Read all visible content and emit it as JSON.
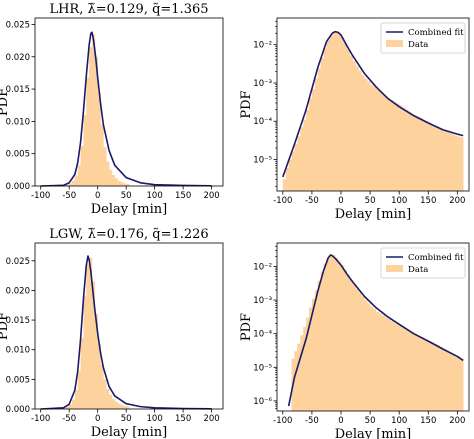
{
  "chart_data": [
    {
      "id": "lhr-linear",
      "type": "bar",
      "title": "LHR, λ̃=0.129, q̃=1.365",
      "xlabel": "Delay [min]",
      "ylabel": "PDF",
      "xlim": [
        -110,
        220
      ],
      "ylim": [
        0,
        0.026
      ],
      "yscale": "linear",
      "xticks": [
        -100,
        -50,
        0,
        50,
        100,
        150,
        200
      ],
      "yticks": [
        0,
        0.005,
        0.01,
        0.015,
        0.02,
        0.025
      ],
      "ytick_labels": [
        "0.000",
        "0.005",
        "0.010",
        "0.015",
        "0.020",
        "0.025"
      ],
      "hist": {
        "name": "Data",
        "color": "#fdd29c",
        "bin_width": 5,
        "bins": [
          -60,
          -55,
          -50,
          -45,
          -40,
          -35,
          -30,
          -25,
          -20,
          -15,
          -10,
          -5,
          0,
          5,
          10,
          15,
          20,
          25,
          30,
          35,
          40,
          45,
          50
        ],
        "values": [
          0.0001,
          0.0002,
          0.0004,
          0.0008,
          0.0016,
          0.0032,
          0.0062,
          0.011,
          0.0168,
          0.0215,
          0.0235,
          0.02,
          0.0145,
          0.0095,
          0.006,
          0.0038,
          0.0025,
          0.0017,
          0.0012,
          0.0008,
          0.0006,
          0.0004,
          0.0003
        ]
      },
      "fit": {
        "name": "Combined fit",
        "color": "#1a1a6e",
        "x": [
          -100,
          -60,
          -50,
          -40,
          -35,
          -30,
          -25,
          -20,
          -15,
          -12,
          -10,
          -7,
          -3,
          0,
          5,
          10,
          20,
          30,
          50,
          75,
          100,
          150,
          200
        ],
        "y": [
          0,
          0.0001,
          0.0005,
          0.0018,
          0.0036,
          0.0068,
          0.0115,
          0.017,
          0.0218,
          0.0236,
          0.0238,
          0.0225,
          0.0195,
          0.0168,
          0.0128,
          0.0095,
          0.0055,
          0.0032,
          0.0013,
          0.0005,
          0.0002,
          8e-05,
          4e-05
        ]
      }
    },
    {
      "id": "lhr-log",
      "type": "bar",
      "title": "",
      "xlabel": "Delay [min]",
      "ylabel": "PDF",
      "xlim": [
        -110,
        220
      ],
      "ylim": [
        1.5e-06,
        0.05
      ],
      "yscale": "log",
      "xticks": [
        -100,
        -50,
        0,
        50,
        100,
        150,
        200
      ],
      "yticks": [
        1e-05,
        0.0001,
        0.001,
        0.01
      ],
      "ytick_labels": [
        "10⁻⁵",
        "10⁻⁴",
        "10⁻³",
        "10⁻²"
      ],
      "legend": {
        "position": "upper right",
        "entries": [
          "Combined fit",
          "Data"
        ]
      },
      "hist": {
        "name": "Data",
        "color": "#fdd29c",
        "bin_width": 5,
        "bins": [
          -100,
          -95,
          -90,
          -85,
          -80,
          -75,
          -70,
          -65,
          -60,
          -55,
          -50,
          -45,
          -40,
          -35,
          -30,
          -25,
          -20,
          -15,
          -10,
          -5,
          0,
          5,
          10,
          15,
          20,
          25,
          30,
          35,
          40,
          45,
          50,
          55,
          60,
          65,
          70,
          75,
          80,
          85,
          90,
          95,
          100,
          105,
          110,
          115,
          120,
          125,
          130,
          135,
          140,
          145,
          150,
          155,
          160,
          165,
          170,
          175,
          180,
          185,
          190,
          195,
          200,
          205
        ],
        "values": [
          3e-06,
          6e-06,
          1e-05,
          1.6e-05,
          2.5e-05,
          4e-05,
          7e-05,
          0.00011,
          0.0002,
          0.0004,
          0.0007,
          0.0013,
          0.0024,
          0.0045,
          0.008,
          0.013,
          0.018,
          0.021,
          0.022,
          0.02,
          0.016,
          0.011,
          0.0075,
          0.0052,
          0.0037,
          0.0028,
          0.0021,
          0.0016,
          0.0013,
          0.0011,
          0.0009,
          0.0008,
          0.0007,
          0.0006,
          0.0005,
          0.00045,
          0.0004,
          0.00036,
          0.00032,
          0.00029,
          0.00026,
          0.00023,
          0.0002,
          0.00018,
          0.00016,
          0.00014,
          0.00013,
          0.00012,
          0.00011,
          0.0001,
          9e-05,
          8e-05,
          7.5e-05,
          7e-05,
          6.5e-05,
          6e-05,
          5.5e-05,
          5e-05,
          4.6e-05,
          4.2e-05,
          4e-05,
          3.8e-05
        ]
      },
      "fit": {
        "name": "Combined fit",
        "color": "#1a1a6e",
        "x": [
          -100,
          -80,
          -60,
          -40,
          -25,
          -15,
          -10,
          -5,
          0,
          10,
          20,
          40,
          60,
          80,
          100,
          125,
          150,
          175,
          200,
          210
        ],
        "y": [
          3.5e-06,
          2.5e-05,
          0.0002,
          0.0025,
          0.012,
          0.02,
          0.022,
          0.021,
          0.018,
          0.0095,
          0.0052,
          0.0018,
          0.0008,
          0.0004,
          0.00024,
          0.00014,
          9e-05,
          6e-05,
          4.6e-05,
          4.2e-05
        ]
      }
    },
    {
      "id": "lgw-linear",
      "type": "bar",
      "title": "LGW, λ̃=0.176, q̃=1.226",
      "xlabel": "Delay [min]",
      "ylabel": "PDF",
      "xlim": [
        -110,
        220
      ],
      "ylim": [
        0,
        0.028
      ],
      "yscale": "linear",
      "xticks": [
        -100,
        -50,
        0,
        50,
        100,
        150,
        200
      ],
      "yticks": [
        0,
        0.005,
        0.01,
        0.015,
        0.02,
        0.025
      ],
      "ytick_labels": [
        "0.000",
        "0.005",
        "0.010",
        "0.015",
        "0.020",
        "0.025"
      ],
      "hist": {
        "name": "Data",
        "color": "#fdd29c",
        "bin_width": 5,
        "bins": [
          -60,
          -55,
          -50,
          -45,
          -40,
          -35,
          -30,
          -25,
          -20,
          -15,
          -10,
          -5,
          0,
          5,
          10,
          15,
          20,
          25,
          30,
          35,
          40,
          45,
          50
        ],
        "values": [
          0.0002,
          0.0004,
          0.0008,
          0.0016,
          0.0032,
          0.0064,
          0.012,
          0.019,
          0.0245,
          0.0255,
          0.0215,
          0.016,
          0.011,
          0.0075,
          0.005,
          0.0034,
          0.0024,
          0.0017,
          0.0012,
          0.0009,
          0.0007,
          0.0005,
          0.0004
        ]
      },
      "fit": {
        "name": "Combined fit",
        "color": "#1a1a6e",
        "x": [
          -100,
          -60,
          -50,
          -40,
          -35,
          -30,
          -25,
          -20,
          -17,
          -15,
          -12,
          -8,
          -5,
          0,
          5,
          10,
          20,
          30,
          50,
          75,
          100,
          150,
          200
        ],
        "y": [
          0,
          0.0002,
          0.0008,
          0.0032,
          0.0064,
          0.0118,
          0.0185,
          0.0242,
          0.0258,
          0.0252,
          0.0232,
          0.0195,
          0.0168,
          0.0128,
          0.0095,
          0.007,
          0.0038,
          0.0022,
          0.0009,
          0.0004,
          0.0002,
          8e-05,
          3e-05
        ]
      }
    },
    {
      "id": "lgw-log",
      "type": "bar",
      "title": "",
      "xlabel": "Delay [min]",
      "ylabel": "PDF",
      "xlim": [
        -110,
        220
      ],
      "ylim": [
        5e-07,
        0.05
      ],
      "yscale": "log",
      "xticks": [
        -100,
        -50,
        0,
        50,
        100,
        150,
        200
      ],
      "yticks": [
        1e-06,
        1e-05,
        0.0001,
        0.001,
        0.01
      ],
      "ytick_labels": [
        "10⁻⁶",
        "10⁻⁵",
        "10⁻⁴",
        "10⁻³",
        "10⁻²"
      ],
      "legend": {
        "position": "upper right",
        "entries": [
          "Combined fit",
          "Data"
        ]
      },
      "hist": {
        "name": "Data",
        "color": "#fdd29c",
        "bin_width": 5,
        "bins": [
          -85,
          -80,
          -75,
          -70,
          -65,
          -60,
          -55,
          -50,
          -45,
          -40,
          -35,
          -30,
          -25,
          -20,
          -15,
          -10,
          -5,
          0,
          5,
          10,
          15,
          20,
          25,
          30,
          35,
          40,
          45,
          50,
          55,
          60,
          65,
          70,
          75,
          80,
          85,
          90,
          95,
          100,
          105,
          110,
          115,
          120,
          125,
          130,
          135,
          140,
          145,
          150,
          155,
          160,
          165,
          170,
          175,
          180,
          185,
          190,
          195,
          200,
          205
        ],
        "values": [
          1.8e-05,
          3e-05,
          5e-05,
          9e-05,
          0.00016,
          0.0003,
          0.0006,
          0.0011,
          0.002,
          0.0038,
          0.007,
          0.012,
          0.018,
          0.022,
          0.022,
          0.018,
          0.014,
          0.011,
          0.0078,
          0.0056,
          0.004,
          0.003,
          0.0022,
          0.0017,
          0.0013,
          0.001,
          0.0008,
          0.00065,
          0.00055,
          0.00045,
          0.0004,
          0.00035,
          0.0003,
          0.00027,
          0.00024,
          0.00021,
          0.00019,
          0.00017,
          0.00015,
          0.00013,
          0.00012,
          0.00011,
          0.0001,
          9e-05,
          8e-05,
          7e-05,
          6.5e-05,
          6e-05,
          5.5e-05,
          5e-05,
          4.5e-05,
          4e-05,
          3.5e-05,
          3e-05,
          2.8e-05,
          2.5e-05,
          2.2e-05,
          2e-05,
          1.8e-05
        ]
      },
      "fit": {
        "name": "Combined fit",
        "color": "#1a1a6e",
        "x": [
          -90,
          -80,
          -60,
          -40,
          -30,
          -22,
          -18,
          -15,
          -10,
          0,
          10,
          20,
          40,
          60,
          80,
          100,
          125,
          150,
          175,
          200,
          210
        ],
        "y": [
          7e-07,
          5e-06,
          7e-05,
          0.0018,
          0.0075,
          0.018,
          0.022,
          0.021,
          0.0175,
          0.011,
          0.006,
          0.0035,
          0.0013,
          0.0006,
          0.00032,
          0.00019,
          0.0001,
          6e-05,
          3.5e-05,
          2.1e-05,
          1.6e-05
        ]
      }
    }
  ]
}
